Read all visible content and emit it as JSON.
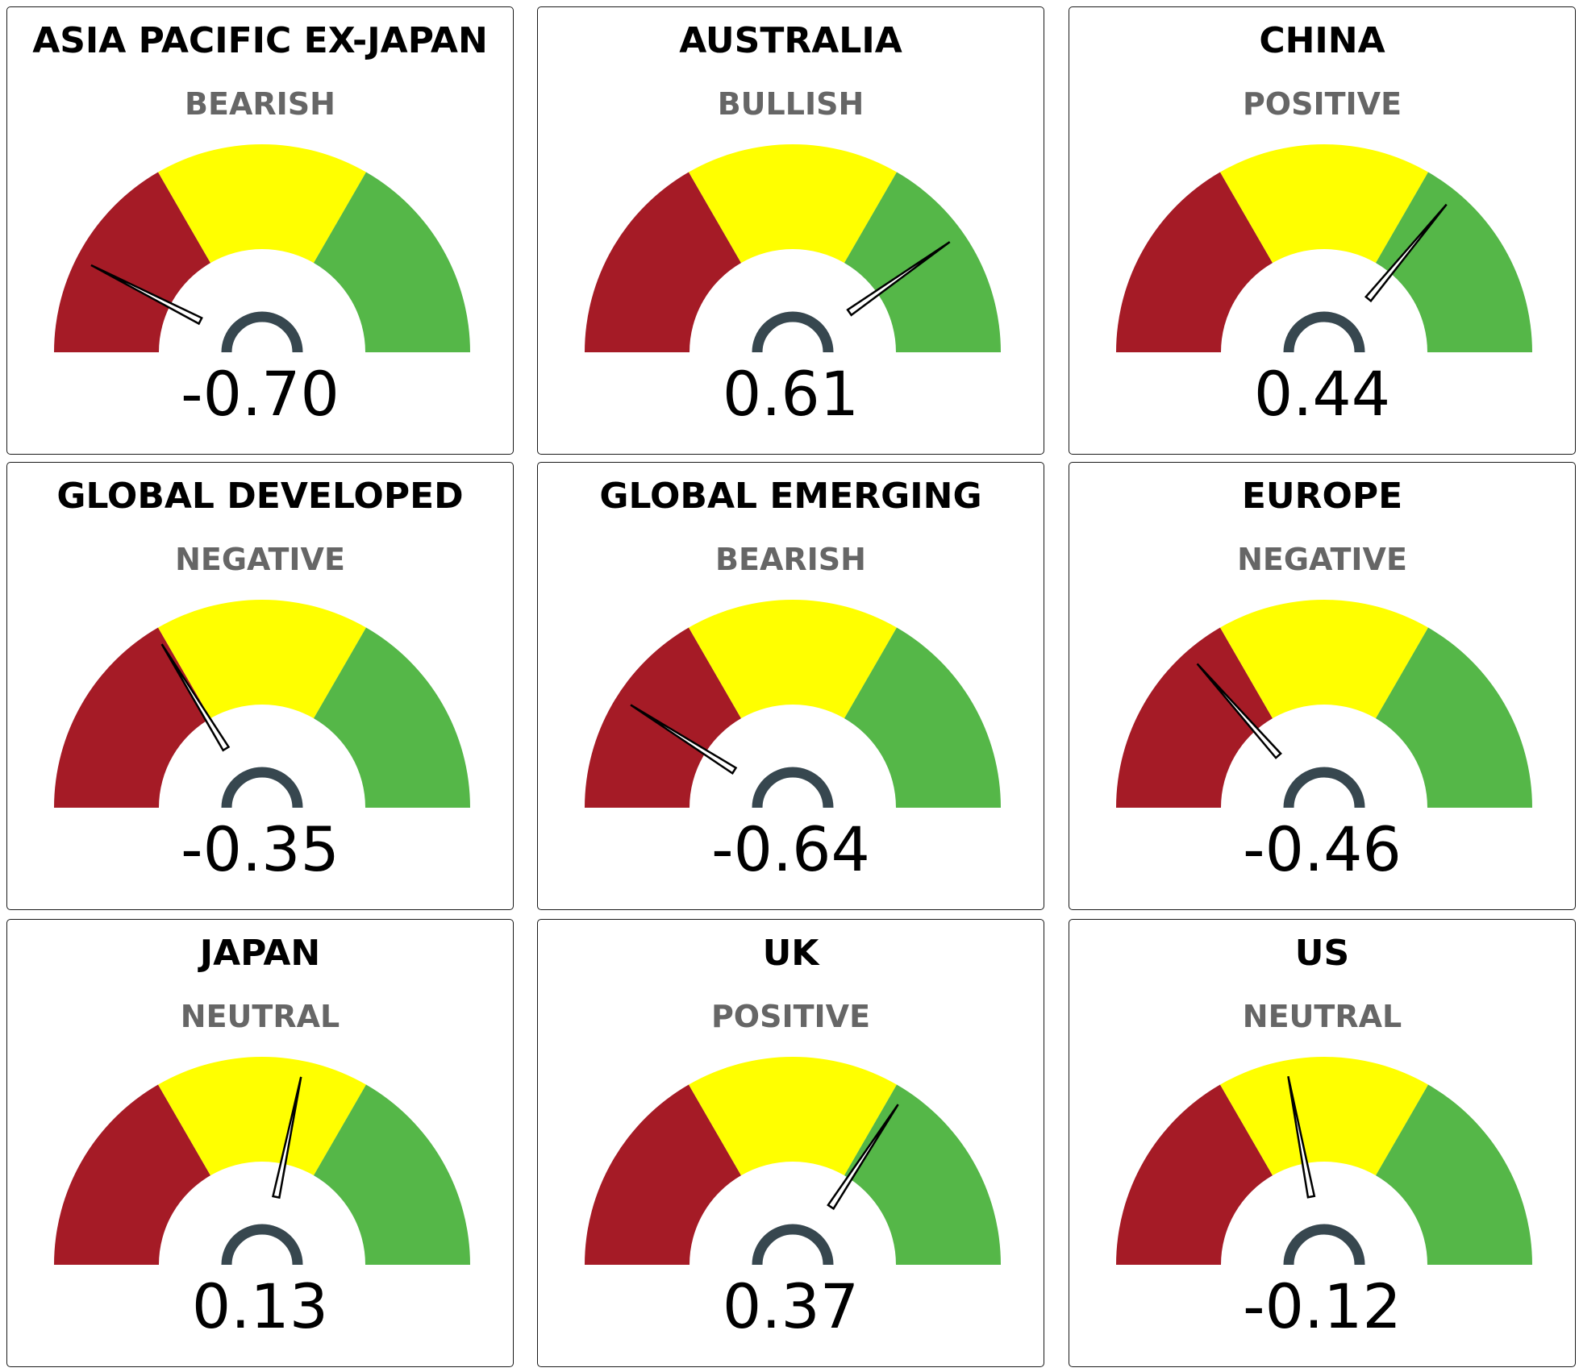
{
  "chart_data": {
    "type": "gauge",
    "range": [
      -1,
      1
    ],
    "bands": [
      {
        "from": -1,
        "to": -0.3333,
        "color": "#a51b26"
      },
      {
        "from": -0.3333,
        "to": 0.3333,
        "color": "#ffff00"
      },
      {
        "from": 0.3333,
        "to": 1,
        "color": "#55b748"
      }
    ],
    "hub_color": "#37474f",
    "gauges": [
      {
        "region": "ASIA PACIFIC EX-JAPAN",
        "sentiment": "BEARISH",
        "score": -0.7,
        "label": "-0.70"
      },
      {
        "region": "AUSTRALIA",
        "sentiment": "BULLISH",
        "score": 0.61,
        "label": "0.61"
      },
      {
        "region": "CHINA",
        "sentiment": "POSITIVE",
        "score": 0.44,
        "label": "0.44"
      },
      {
        "region": "GLOBAL DEVELOPED",
        "sentiment": "NEGATIVE",
        "score": -0.35,
        "label": "-0.35"
      },
      {
        "region": "GLOBAL EMERGING",
        "sentiment": "BEARISH",
        "score": -0.64,
        "label": "-0.64"
      },
      {
        "region": "EUROPE",
        "sentiment": "NEGATIVE",
        "score": -0.46,
        "label": "-0.46"
      },
      {
        "region": "JAPAN",
        "sentiment": "NEUTRAL",
        "score": 0.13,
        "label": "0.13"
      },
      {
        "region": "UK",
        "sentiment": "POSITIVE",
        "score": 0.37,
        "label": "0.37"
      },
      {
        "region": "US",
        "sentiment": "NEUTRAL",
        "score": -0.12,
        "label": "-0.12"
      }
    ]
  }
}
